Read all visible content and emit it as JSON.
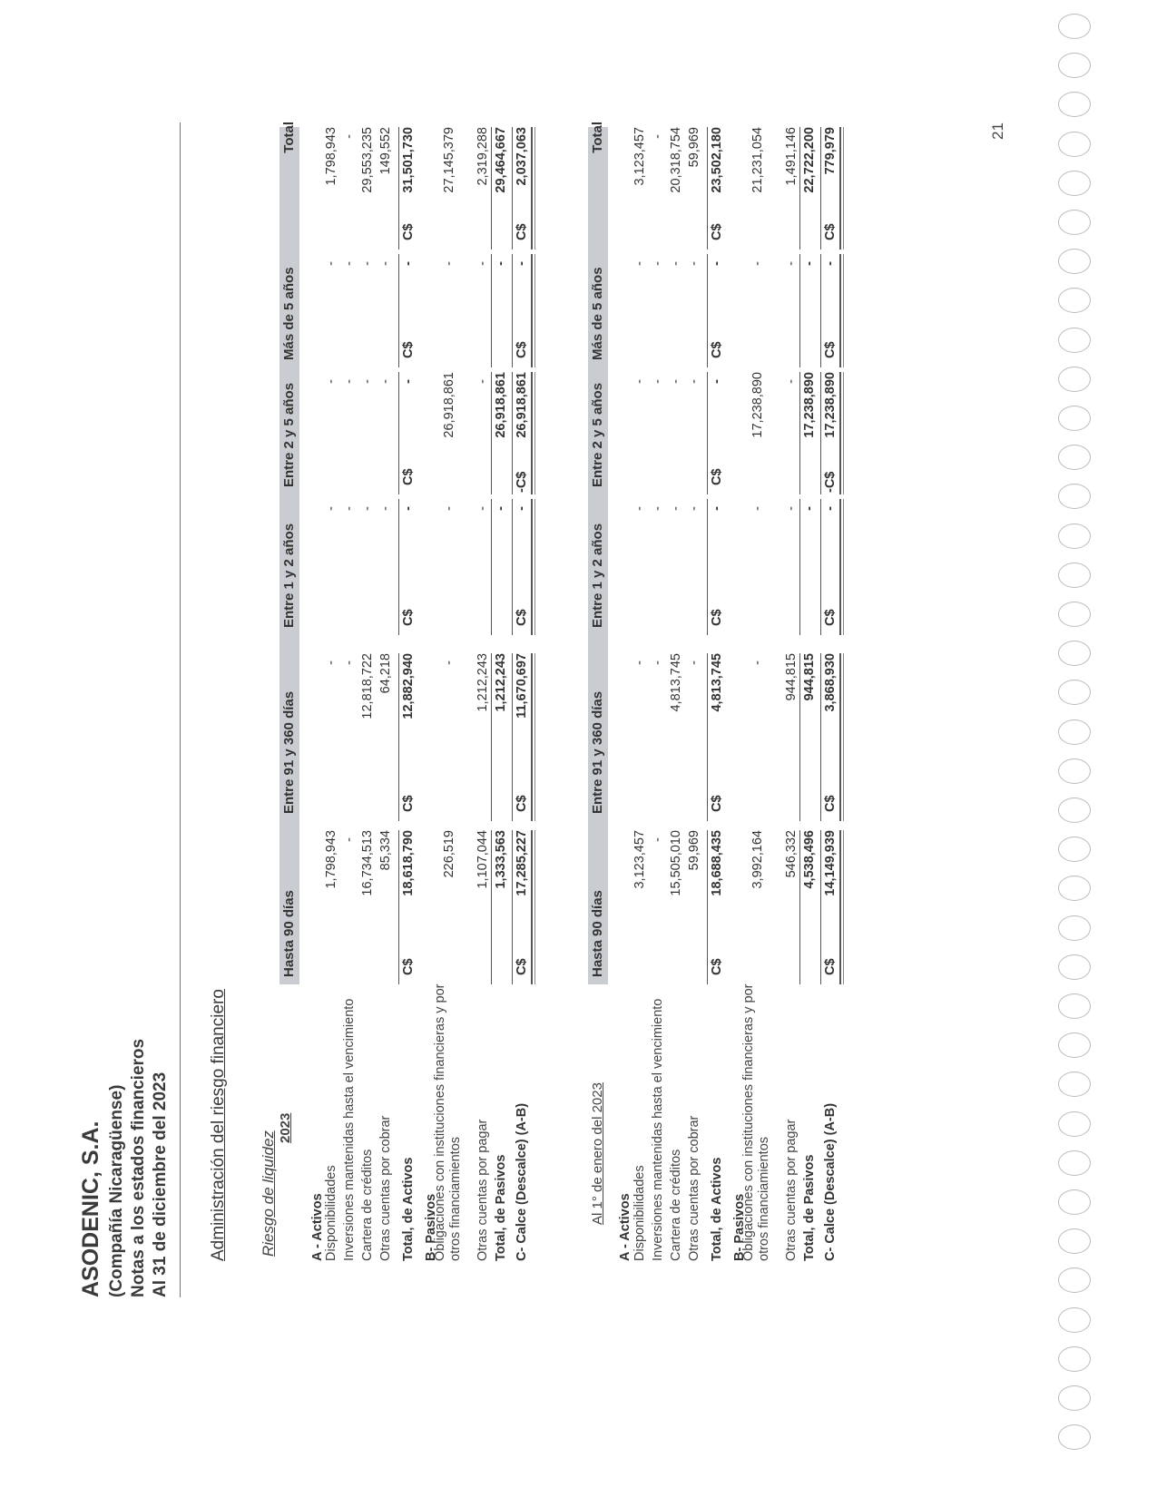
{
  "header": {
    "company": "ASODENIC, S.A.",
    "subtitle": "(Compañía Nicaragüense)",
    "notes": "Notas a los estados financieros",
    "date": "Al 31 de diciembre del 2023"
  },
  "section_title": "Administración del riesgo financiero",
  "subsection_title": "Riesgo de liquidez",
  "currency": "C$",
  "columns": [
    "Hasta 90 días",
    "Entre 91 y 360 días",
    "Entre 1 y 2 años",
    "Entre 2 y 5 años",
    "Más de 5 años",
    "Total"
  ],
  "tables": [
    {
      "title": "2023",
      "rows": [
        {
          "label": "A - Activos",
          "kind": "heading"
        },
        {
          "label": "Disponibilidades",
          "values": [
            "1,798,943",
            "-",
            "-",
            "-",
            "-",
            "1,798,943"
          ]
        },
        {
          "label": "Inversiones mantenidas hasta el vencimiento",
          "values": [
            "-",
            "-",
            "-",
            "-",
            "-",
            "-"
          ]
        },
        {
          "label": "Cartera de créditos",
          "values": [
            "16,734,513",
            "12,818,722",
            "-",
            "-",
            "-",
            "29,553,235"
          ]
        },
        {
          "label": "Otras cuentas por cobrar",
          "values": [
            "85,334",
            "64,218",
            "-",
            "-",
            "-",
            "149,552"
          ]
        },
        {
          "label": "Total, de Activos",
          "kind": "total",
          "currency": [
            "C$",
            "C$",
            "C$",
            "C$",
            "C$",
            "C$"
          ],
          "values": [
            "18,618,790",
            "12,882,940",
            "-",
            "-",
            "-",
            "31,501,730"
          ]
        },
        {
          "label": "B- Pasivos",
          "kind": "heading"
        },
        {
          "label": "Obligaciones con instituciones financieras y por",
          "label2": "otros financiamientos",
          "values": [
            "226,519",
            "-",
            "-",
            "26,918,861",
            "-",
            "27,145,379"
          ]
        },
        {
          "label": "Otras cuentas por pagar",
          "values": [
            "1,107,044",
            "1,212,243",
            "-",
            "-",
            "-",
            "2,319,288"
          ]
        },
        {
          "label": "Total, de Pasivos",
          "kind": "subtotal",
          "values": [
            "1,333,563",
            "1,212,243",
            "-",
            "26,918,861",
            "-",
            "29,464,667"
          ]
        },
        {
          "label": "C- Calce (Descalce) (A-B)",
          "kind": "calce",
          "currency": [
            "C$",
            "C$",
            "C$",
            "-C$",
            "C$",
            "C$"
          ],
          "values": [
            "17,285,227",
            "11,670,697",
            "-",
            "26,918,861",
            "-",
            "2,037,063"
          ]
        }
      ]
    },
    {
      "title": "Al 1° de enero del 2023",
      "rows": [
        {
          "label": "A - Activos",
          "kind": "heading"
        },
        {
          "label": "Disponibilidades",
          "values": [
            "3,123,457",
            "-",
            "-",
            "-",
            "-",
            "3,123,457"
          ]
        },
        {
          "label": "Inversiones mantenidas hasta el vencimiento",
          "values": [
            "-",
            "-",
            "-",
            "-",
            "-",
            "-"
          ]
        },
        {
          "label": "Cartera de créditos",
          "values": [
            "15,505,010",
            "4,813,745",
            "-",
            "-",
            "-",
            "20,318,754"
          ]
        },
        {
          "label": "Otras cuentas por cobrar",
          "values": [
            "59,969",
            "-",
            "-",
            "-",
            "-",
            "59,969"
          ]
        },
        {
          "label": "Total, de Activos",
          "kind": "total",
          "currency": [
            "C$",
            "C$",
            "C$",
            "C$",
            "C$",
            "C$"
          ],
          "values": [
            "18,688,435",
            "4,813,745",
            "-",
            "-",
            "-",
            "23,502,180"
          ]
        },
        {
          "label": "B- Pasivos",
          "kind": "heading"
        },
        {
          "label": "Obligaciones con instituciones financieras y por",
          "label2": "otros financiamientos",
          "values": [
            "3,992,164",
            "-",
            "-",
            "17,238,890",
            "-",
            "21,231,054"
          ]
        },
        {
          "label": "Otras cuentas por pagar",
          "values": [
            "546,332",
            "944,815",
            "-",
            "-",
            "-",
            "1,491,146"
          ]
        },
        {
          "label": "Total, de Pasivos",
          "kind": "subtotal",
          "values": [
            "4,538,496",
            "944,815",
            "-",
            "17,238,890",
            "-",
            "22,722,200"
          ]
        },
        {
          "label": "C- Calce (Descalce) (A-B)",
          "kind": "calce",
          "currency": [
            "C$",
            "C$",
            "C$",
            "-C$",
            "C$",
            "C$"
          ],
          "values": [
            "14,149,939",
            "3,868,930",
            "-",
            "17,238,890",
            "-",
            "779,979"
          ]
        }
      ]
    }
  ],
  "page_number": "21"
}
